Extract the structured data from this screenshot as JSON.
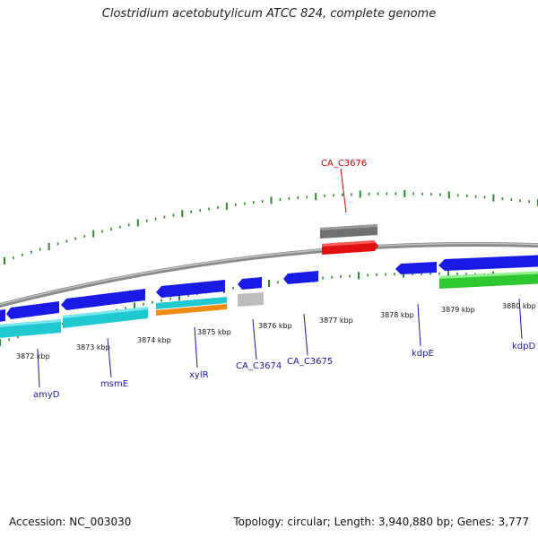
{
  "title": "Clostridium acetobutylicum ATCC 824, complete genome",
  "footer": {
    "accession": "Accession: NC_003030",
    "topology": "Topology: circular; Length: 3,940,880 bp; Genes: 3,777"
  },
  "colors": {
    "backbone": "#8a8a8a",
    "tick": "#2a8a2a",
    "forward_gene": "#1a1ae6",
    "cds_cyan": "#20c8d0",
    "cds_orange": "#f08a10",
    "cds_green": "#30c830",
    "cds_gray": "#bdbdbd",
    "cds_red": "#e01010",
    "gene_darkgray": "#707070",
    "label_blue": "#1a1aa6",
    "label_red": "#cc0000"
  },
  "scale_labels": [
    {
      "id": "3872",
      "text": "3872 kbp"
    },
    {
      "id": "3873",
      "text": "3873 kbp"
    },
    {
      "id": "3874",
      "text": "3874 kbp"
    },
    {
      "id": "3875",
      "text": "3875 kbp"
    },
    {
      "id": "3876",
      "text": "3876 kbp"
    },
    {
      "id": "3877",
      "text": "3877 kbp"
    },
    {
      "id": "3878",
      "text": "3878 kbp"
    },
    {
      "id": "3879",
      "text": "3879 kbp"
    },
    {
      "id": "3880",
      "text": "3880 kbp"
    }
  ],
  "gene_labels": [
    {
      "id": "amyD",
      "text": "amyD"
    },
    {
      "id": "msmE",
      "text": "msmE"
    },
    {
      "id": "xylR",
      "text": "xylR"
    },
    {
      "id": "CA_C3674",
      "text": "CA_C3674"
    },
    {
      "id": "CA_C3675",
      "text": "CA_C3675"
    },
    {
      "id": "kdpE",
      "text": "kdpE"
    },
    {
      "id": "kdpD",
      "text": "kdpD"
    },
    {
      "id": "CA_C3676",
      "text": "CA_C3676"
    }
  ]
}
